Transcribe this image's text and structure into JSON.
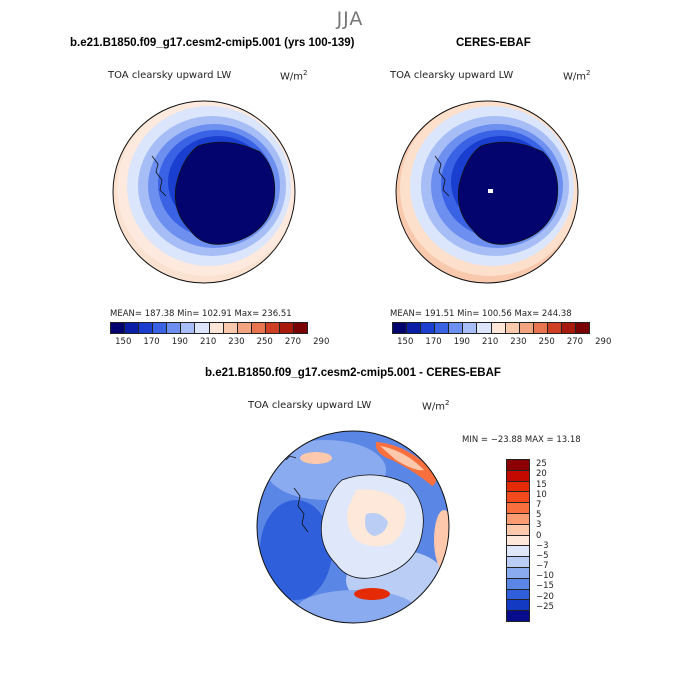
{
  "season": "JJA",
  "panels": [
    {
      "title": "b.e21.B1850.f09_g17.cesm2-cmip5.001 (yrs 100-139)",
      "variable": "TOA clearsky upward LW",
      "units_base": "W/m",
      "units_exp": "2",
      "stats": "MEAN= 187.38   Min= 102.91   Max= 236.51",
      "colorbar_ticks": [
        "150",
        "170",
        "190",
        "210",
        "230",
        "250",
        "270",
        "290"
      ]
    },
    {
      "title": "CERES-EBAF",
      "variable": "TOA clearsky upward LW",
      "units_base": "W/m",
      "units_exp": "2",
      "stats": "MEAN= 191.51   Min= 100.56   Max= 244.38",
      "colorbar_ticks": [
        "150",
        "170",
        "190",
        "210",
        "230",
        "250",
        "270",
        "290"
      ]
    }
  ],
  "diff_panel": {
    "title": "b.e21.B1850.f09_g17.cesm2-cmip5.001 - CERES-EBAF",
    "variable": "TOA clearsky upward LW",
    "units_base": "W/m",
    "units_exp": "2",
    "stats": "MIN = −23.88  MAX =  13.18",
    "colorbar_ticks": [
      "25",
      "20",
      "15",
      "10",
      "7",
      "5",
      "3",
      "0",
      "−3",
      "−5",
      "−7",
      "−10",
      "−15",
      "−20",
      "−25"
    ]
  },
  "colors": {
    "seq_palette": [
      "#04046e",
      "#0a1ea8",
      "#1a3fd0",
      "#3a62e4",
      "#6d8ff0",
      "#a6bdf6",
      "#dbe5fb",
      "#fce6d8",
      "#f9c9ad",
      "#f2a37f",
      "#e5744f",
      "#cf3f24",
      "#a81a0c",
      "#7a0404"
    ],
    "diff_palette": [
      "#8b0000",
      "#c40a00",
      "#e52a06",
      "#f24a1c",
      "#f9703e",
      "#fc9c72",
      "#fdc8ac",
      "#fde8da",
      "#dfe8fa",
      "#b9cdf5",
      "#8aabef",
      "#5a86e6",
      "#2f5fda",
      "#123ac2",
      "#060c8c"
    ]
  }
}
